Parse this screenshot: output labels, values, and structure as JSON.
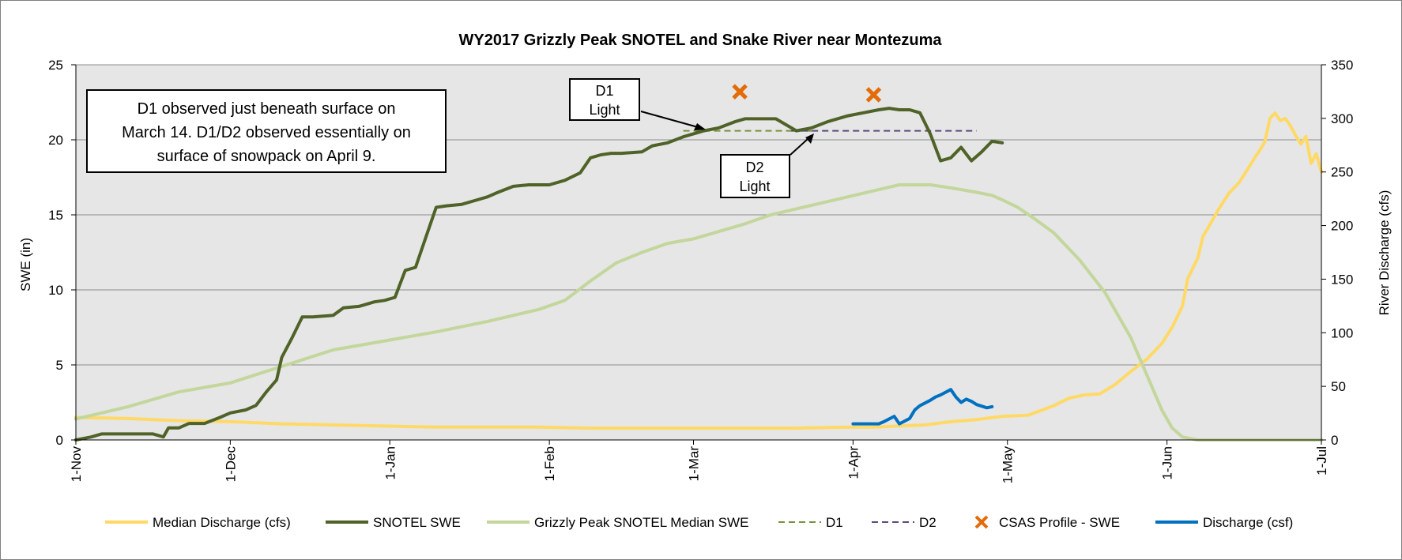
{
  "chart_data": {
    "type": "line",
    "title": "WY2017 Grizzly Peak SNOTEL and Snake River near Montezuma",
    "ylabel_left": "SWE (in)",
    "ylabel_right": "River Discharge (cfs)",
    "ylim_left": [
      0,
      25
    ],
    "ylim_right": [
      0,
      350
    ],
    "yticks_left": [
      "0",
      "5",
      "10",
      "15",
      "20",
      "25"
    ],
    "yticks_right": [
      "0",
      "50",
      "100",
      "150",
      "200",
      "250",
      "300",
      "350"
    ],
    "x_unit": "day of water year (1-Nov = 0)",
    "xlim": [
      0,
      242
    ],
    "xticks": [
      {
        "label": "1-Nov",
        "day": 0
      },
      {
        "label": "1-Dec",
        "day": 30
      },
      {
        "label": "1-Jan",
        "day": 61
      },
      {
        "label": "1-Feb",
        "day": 92
      },
      {
        "label": "1-Mar",
        "day": 120
      },
      {
        "label": "1-Apr",
        "day": 151
      },
      {
        "label": "1-May",
        "day": 181
      },
      {
        "label": "1-Jun",
        "day": 212
      },
      {
        "label": "1-Jul",
        "day": 242
      }
    ],
    "grid": true,
    "legend_position": "bottom",
    "series": [
      {
        "name": "Median Discharge (cfs)",
        "axis": "right",
        "color": "#ffd966",
        "x": [
          0,
          10,
          20,
          30,
          40,
          50,
          60,
          70,
          80,
          90,
          100,
          110,
          120,
          130,
          140,
          150,
          155,
          160,
          165,
          170,
          175,
          180,
          185,
          190,
          193,
          196,
          199,
          202,
          205,
          208,
          211,
          213,
          215,
          216,
          218,
          219,
          220,
          222,
          224,
          226,
          228,
          229,
          230,
          231,
          232,
          233,
          234,
          235,
          236,
          237,
          238,
          239,
          240,
          241,
          242
        ],
        "y": [
          21,
          20,
          18,
          17,
          15,
          14,
          13,
          12,
          12,
          12,
          11,
          11,
          11,
          11,
          11,
          12,
          12,
          13,
          14,
          17,
          19,
          22,
          23,
          32,
          39,
          42,
          43,
          52,
          64,
          75,
          90,
          105,
          125,
          150,
          170,
          190,
          198,
          215,
          230,
          240,
          255,
          263,
          270,
          278,
          300,
          305,
          298,
          300,
          293,
          284,
          276,
          283,
          258,
          267,
          250
        ]
      },
      {
        "name": "SNOTEL SWE",
        "axis": "left",
        "color": "#4f6228",
        "x": [
          0,
          3,
          5,
          10,
          15,
          17,
          18,
          20,
          22,
          25,
          28,
          30,
          33,
          35,
          37,
          39,
          40,
          42,
          44,
          46,
          50,
          52,
          55,
          58,
          60,
          62,
          64,
          66,
          68,
          70,
          72,
          75,
          78,
          80,
          82,
          85,
          88,
          92,
          95,
          98,
          100,
          102,
          104,
          106,
          110,
          112,
          115,
          118,
          120,
          122,
          125,
          128,
          130,
          133,
          136,
          138,
          140,
          143,
          146,
          150,
          153,
          156,
          158,
          160,
          162,
          164,
          166,
          168,
          170,
          172,
          174,
          176,
          178,
          180
        ],
        "y": [
          0,
          0.2,
          0.4,
          0.4,
          0.4,
          0.2,
          0.8,
          0.8,
          1.1,
          1.1,
          1.5,
          1.8,
          2.0,
          2.3,
          3.2,
          4.0,
          5.5,
          6.8,
          8.2,
          8.2,
          8.3,
          8.8,
          8.9,
          9.2,
          9.3,
          9.5,
          11.3,
          11.5,
          13.5,
          15.5,
          15.6,
          15.7,
          16.0,
          16.2,
          16.5,
          16.9,
          17.0,
          17.0,
          17.3,
          17.8,
          18.8,
          19.0,
          19.1,
          19.1,
          19.2,
          19.6,
          19.8,
          20.2,
          20.4,
          20.6,
          20.8,
          21.2,
          21.4,
          21.4,
          21.4,
          21.0,
          20.6,
          20.8,
          21.2,
          21.6,
          21.8,
          22.0,
          22.1,
          22.0,
          22.0,
          21.8,
          20.4,
          18.6,
          18.8,
          19.5,
          18.6,
          19.2,
          19.9,
          19.8
        ]
      },
      {
        "name": "Grizzly Peak SNOTEL Median SWE",
        "axis": "left",
        "color": "#c3d69b",
        "x": [
          0,
          10,
          20,
          30,
          40,
          50,
          60,
          70,
          80,
          90,
          95,
          100,
          105,
          110,
          115,
          120,
          125,
          130,
          135,
          140,
          145,
          150,
          155,
          160,
          163,
          166,
          170,
          175,
          178,
          180,
          183,
          186,
          190,
          195,
          200,
          205,
          208,
          211,
          213,
          215,
          218,
          242
        ],
        "y": [
          1.4,
          2.2,
          3.2,
          3.8,
          4.9,
          6.0,
          6.6,
          7.2,
          7.9,
          8.7,
          9.3,
          10.6,
          11.8,
          12.5,
          13.1,
          13.4,
          13.9,
          14.4,
          15.0,
          15.4,
          15.8,
          16.2,
          16.6,
          17.0,
          17.0,
          17.0,
          16.8,
          16.5,
          16.3,
          16.0,
          15.5,
          14.8,
          13.8,
          12.0,
          9.8,
          6.8,
          4.4,
          2.0,
          0.8,
          0.2,
          0,
          0
        ]
      },
      {
        "name": "D1",
        "axis": "left",
        "color": "#77933c",
        "dashed": true,
        "x": [
          118,
          143
        ],
        "y": [
          20.6,
          20.6
        ]
      },
      {
        "name": "D2",
        "axis": "left",
        "color": "#604a7b",
        "dashed": true,
        "x": [
          139,
          175
        ],
        "y": [
          20.6,
          20.6
        ]
      },
      {
        "name": "CSAS Profile - SWE",
        "axis": "left",
        "color": "#e36c09",
        "marker": "x",
        "x": [
          129,
          155
        ],
        "y": [
          23.2,
          23.0
        ]
      },
      {
        "name": "Discharge (csf)",
        "axis": "right",
        "color": "#0070c0",
        "x": [
          151,
          153,
          155,
          156,
          157,
          159,
          160,
          162,
          163,
          164,
          166,
          167,
          168,
          170,
          171,
          172,
          173,
          174,
          175,
          177,
          178
        ],
        "y": [
          15,
          15,
          15,
          15,
          17,
          22,
          15,
          20,
          28,
          32,
          37,
          40,
          42,
          47,
          40,
          35,
          38,
          36,
          33,
          30,
          31
        ]
      }
    ],
    "annotations": {
      "note_line1": "D1  observed just beneath surface on",
      "note_line2": "March 14.  D1/D2 observed essentially on",
      "note_line3": "surface of snowpack on April 9.",
      "d1_line1": "D1",
      "d1_line2": "Light",
      "d2_line1": "D2",
      "d2_line2": "Light"
    }
  }
}
